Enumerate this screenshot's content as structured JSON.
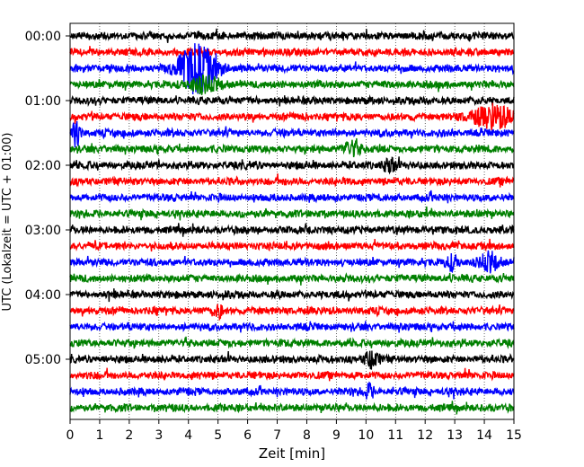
{
  "chart_data": {
    "type": "line",
    "title": "",
    "xlabel": "Zeit  [min]",
    "ylabel": "UTC (Lokalzeit = UTC + 01:00)",
    "xlim": [
      0,
      15
    ],
    "x_ticks": [
      0,
      1,
      2,
      3,
      4,
      5,
      6,
      7,
      8,
      9,
      10,
      11,
      12,
      13,
      14,
      15
    ],
    "y_ticks": [
      "00:00",
      "01:00",
      "02:00",
      "03:00",
      "04:00",
      "05:00"
    ],
    "trace_interval_min": 15,
    "trace_count": 24,
    "grid_x": true,
    "grid_y": false,
    "legend": "none",
    "color_cycle": [
      "#000000",
      "#ff0000",
      "#0000ff",
      "#008000"
    ],
    "events": [
      {
        "trace": 2,
        "t_min": 4.3,
        "amplitude": 4.2,
        "width_min": 1.1
      },
      {
        "trace": 3,
        "t_min": 4.5,
        "amplitude": 1.2,
        "width_min": 1.0
      },
      {
        "trace": 5,
        "t_min": 14.3,
        "amplitude": 2.0,
        "width_min": 1.2
      },
      {
        "trace": 6,
        "t_min": 0.2,
        "amplitude": 2.2,
        "width_min": 0.25
      },
      {
        "trace": 7,
        "t_min": 9.5,
        "amplitude": 1.3,
        "width_min": 0.5
      },
      {
        "trace": 8,
        "t_min": 10.8,
        "amplitude": 1.2,
        "width_min": 0.4
      },
      {
        "trace": 14,
        "t_min": 14.2,
        "amplitude": 1.5,
        "width_min": 0.6
      },
      {
        "trace": 14,
        "t_min": 12.9,
        "amplitude": 1.2,
        "width_min": 0.4
      },
      {
        "trace": 17,
        "t_min": 5.0,
        "amplitude": 1.0,
        "width_min": 0.3
      },
      {
        "trace": 20,
        "t_min": 10.2,
        "amplitude": 1.3,
        "width_min": 0.4
      },
      {
        "trace": 22,
        "t_min": 10.1,
        "amplitude": 1.1,
        "width_min": 0.3
      }
    ]
  }
}
